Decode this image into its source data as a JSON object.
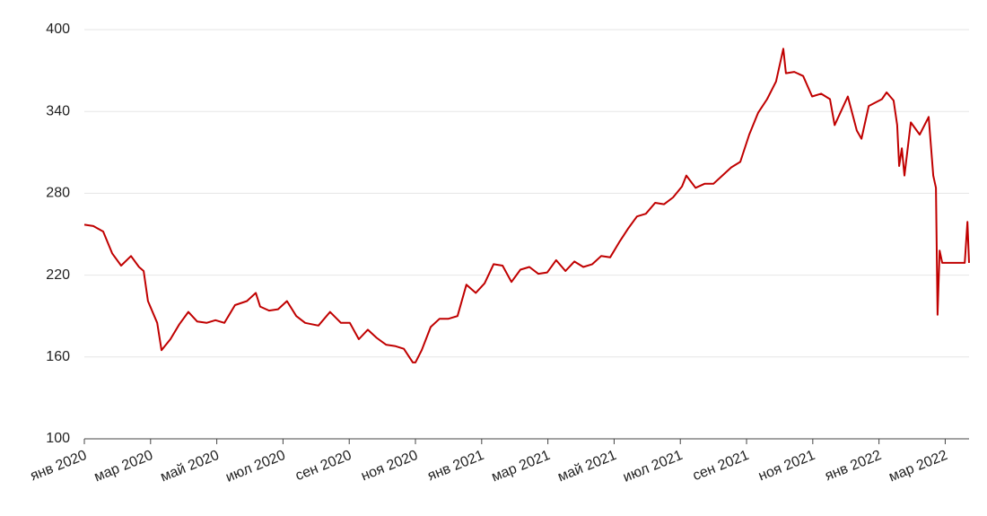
{
  "chart_data": {
    "type": "line",
    "x": [
      0,
      0.27,
      0.57,
      0.84,
      1.11,
      1.41,
      1.65,
      1.79,
      1.92,
      2.2,
      2.33,
      2.6,
      2.87,
      3.14,
      3.41,
      3.69,
      3.96,
      4.23,
      4.55,
      4.91,
      5.18,
      5.31,
      5.58,
      5.85,
      6.12,
      6.4,
      6.67,
      7.07,
      7.42,
      7.75,
      8.02,
      8.29,
      8.56,
      8.83,
      9.11,
      9.38,
      9.65,
      9.92,
      10.0,
      10.19,
      10.46,
      10.73,
      11.0,
      11.27,
      11.54,
      11.82,
      12.09,
      12.36,
      12.63,
      12.9,
      13.17,
      13.44,
      13.71,
      13.98,
      14.25,
      14.53,
      14.8,
      15.07,
      15.34,
      15.61,
      15.88,
      16.15,
      16.42,
      16.69,
      16.96,
      17.24,
      17.51,
      17.78,
      18.05,
      18.18,
      18.46,
      18.73,
      19.0,
      19.27,
      19.54,
      19.81,
      20.08,
      20.35,
      20.62,
      20.89,
      21.11,
      21.19,
      21.44,
      21.71,
      21.98,
      22.25,
      22.52,
      22.66,
      23.06,
      23.33,
      23.47,
      23.69,
      24.09,
      24.23,
      24.44,
      24.55,
      24.61,
      24.69,
      24.77,
      24.96,
      25.23,
      25.5,
      25.64,
      25.72,
      25.77,
      25.83,
      25.91,
      26.59,
      26.67,
      26.72
    ],
    "series": [
      {
        "color": "#c00000",
        "values": [
          257,
          256,
          252,
          236,
          227,
          234,
          226,
          223,
          201,
          185,
          165,
          173,
          184,
          193,
          186,
          185,
          187,
          185,
          198,
          201,
          207,
          197,
          194,
          195,
          201,
          190,
          185,
          183,
          193,
          185,
          185,
          173,
          180,
          174,
          169,
          168,
          166,
          156,
          156,
          165,
          182,
          188,
          188,
          190,
          213,
          207,
          214,
          228,
          227,
          215,
          224,
          226,
          221,
          222,
          231,
          223,
          230,
          226,
          228,
          234,
          233,
          244,
          254,
          263,
          265,
          273,
          272,
          277,
          285,
          293,
          284,
          287,
          287,
          293,
          299,
          303,
          323,
          339,
          349,
          362,
          386,
          368,
          369,
          366,
          351,
          353,
          349,
          330,
          351,
          326,
          320,
          344,
          349,
          354,
          348,
          330,
          300,
          313,
          293,
          332,
          323,
          336,
          293,
          284,
          191,
          238,
          229,
          229,
          259,
          229
        ]
      }
    ],
    "xlim": [
      0,
      26.72
    ],
    "xticks": [
      {
        "value": 0,
        "label": "янв 2020"
      },
      {
        "value": 2,
        "label": "мар 2020"
      },
      {
        "value": 4,
        "label": "май 2020"
      },
      {
        "value": 6,
        "label": "июл 2020"
      },
      {
        "value": 8,
        "label": "сен 2020"
      },
      {
        "value": 10,
        "label": "ноя 2020"
      },
      {
        "value": 12,
        "label": "янв 2021"
      },
      {
        "value": 14,
        "label": "мар 2021"
      },
      {
        "value": 16,
        "label": "май 2021"
      },
      {
        "value": 18,
        "label": "июл 2021"
      },
      {
        "value": 20,
        "label": "сен 2021"
      },
      {
        "value": 22,
        "label": "ноя 2021"
      },
      {
        "value": 24,
        "label": "янв 2022"
      },
      {
        "value": 26,
        "label": "мар 2022"
      }
    ],
    "ylim": [
      100,
      400
    ],
    "yticks": [
      100,
      160,
      220,
      280,
      340,
      400
    ],
    "grid": true
  }
}
